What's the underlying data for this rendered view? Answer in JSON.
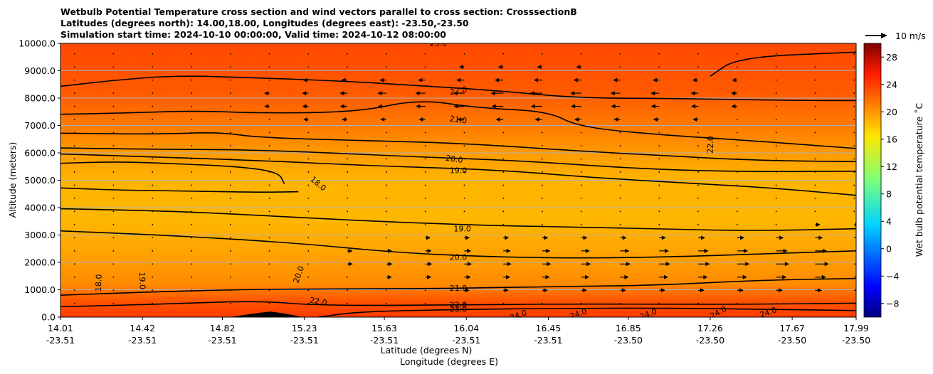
{
  "chart_data": {
    "type": "contour_cross_section",
    "title_lines": [
      "Wetbulb Potential Temperature cross section and wind vectors parallel to cross section: CrosssectionB",
      "Latitudes (degrees north): 14.00,18.00, Longitudes (degrees east): -23.50,-23.50",
      "Simulation start time: 2024-10-10 00:00:00, Valid time: 2024-10-12 08:00:00"
    ],
    "ylabel": "Altitude (meters)",
    "xlabel_line1": "Latitude (degrees N)",
    "xlabel_line2": "Longitude (degrees E)",
    "ylim": [
      0,
      10000
    ],
    "xlim": [
      14.01,
      17.99
    ],
    "y_ticks": [
      {
        "value": 0,
        "label": "0.0"
      },
      {
        "value": 1000,
        "label": "1000.0"
      },
      {
        "value": 2000,
        "label": "2000.0"
      },
      {
        "value": 3000,
        "label": "3000.0"
      },
      {
        "value": 4000,
        "label": "4000.0"
      },
      {
        "value": 5000,
        "label": "5000.0"
      },
      {
        "value": 6000,
        "label": "6000.0"
      },
      {
        "value": 7000,
        "label": "7000.0"
      },
      {
        "value": 8000,
        "label": "8000.0"
      },
      {
        "value": 9000,
        "label": "9000.0"
      },
      {
        "value": 10000,
        "label": "10000.0"
      }
    ],
    "x_ticks": [
      {
        "value": 14.01,
        "lat": "14.01",
        "lon": "-23.51"
      },
      {
        "value": 14.42,
        "lat": "14.42",
        "lon": "-23.51"
      },
      {
        "value": 14.82,
        "lat": "14.82",
        "lon": "-23.51"
      },
      {
        "value": 15.23,
        "lat": "15.23",
        "lon": "-23.51"
      },
      {
        "value": 15.63,
        "lat": "15.63",
        "lon": "-23.51"
      },
      {
        "value": 16.04,
        "lat": "16.04",
        "lon": "-23.51"
      },
      {
        "value": 16.45,
        "lat": "16.45",
        "lon": "-23.51"
      },
      {
        "value": 16.85,
        "lat": "16.85",
        "lon": "-23.50"
      },
      {
        "value": 17.26,
        "lat": "17.26",
        "lon": "-23.50"
      },
      {
        "value": 17.67,
        "lat": "17.67",
        "lon": "-23.50"
      },
      {
        "value": 17.99,
        "lat": "17.99",
        "lon": "-23.50"
      }
    ],
    "grid": "horizontal",
    "colorbar": {
      "label": "Wet bulb potential temperature ˚C",
      "range": [
        -10,
        30
      ],
      "ticks": [
        -8,
        -4,
        0,
        4,
        8,
        12,
        16,
        20,
        24,
        28
      ],
      "tick_labels": [
        "−8",
        "−4",
        "0",
        "4",
        "8",
        "12",
        "16",
        "20",
        "24",
        "28"
      ],
      "colormap": "jet"
    },
    "wind_key_label": "10 m/s",
    "contours": [
      {
        "level": 18,
        "label": "18.0",
        "points": [
          [
            14.01,
            4720
          ],
          [
            14.3,
            4640
          ],
          [
            14.7,
            4600
          ],
          [
            15.0,
            4560
          ],
          [
            15.2,
            4580
          ]
        ]
      },
      {
        "level": 18,
        "label": "18.0",
        "points": [
          [
            14.01,
            5620
          ],
          [
            14.3,
            5680
          ],
          [
            14.6,
            5600
          ],
          [
            14.9,
            5500
          ],
          [
            15.1,
            5300
          ],
          [
            15.13,
            4870
          ]
        ]
      },
      {
        "level": 19,
        "label": "19.0",
        "points": [
          [
            14.01,
            3960
          ],
          [
            14.6,
            3870
          ],
          [
            15.2,
            3640
          ],
          [
            15.7,
            3460
          ],
          [
            16.2,
            3340
          ],
          [
            16.6,
            3290
          ],
          [
            17.0,
            3220
          ],
          [
            17.5,
            3150
          ],
          [
            17.99,
            3230
          ]
        ]
      },
      {
        "level": 19,
        "label": "19.0",
        "points": [
          [
            14.01,
            5960
          ],
          [
            14.5,
            5850
          ],
          [
            15.0,
            5720
          ],
          [
            15.6,
            5520
          ],
          [
            16.2,
            5380
          ],
          [
            16.7,
            5080
          ],
          [
            17.2,
            4880
          ],
          [
            17.6,
            4700
          ],
          [
            17.99,
            4450
          ]
        ]
      },
      {
        "level": 20,
        "label": "20.0",
        "points": [
          [
            14.01,
            3150
          ],
          [
            14.6,
            2970
          ],
          [
            15.2,
            2700
          ],
          [
            15.7,
            2350
          ],
          [
            16.2,
            2190
          ],
          [
            16.7,
            2150
          ],
          [
            17.2,
            2230
          ],
          [
            17.6,
            2330
          ],
          [
            17.99,
            2420
          ]
        ]
      },
      {
        "level": 20,
        "label": "20.0",
        "points": [
          [
            14.01,
            6180
          ],
          [
            14.5,
            6130
          ],
          [
            14.9,
            6120
          ],
          [
            15.3,
            6020
          ],
          [
            15.8,
            5850
          ],
          [
            16.3,
            5720
          ],
          [
            16.9,
            5420
          ],
          [
            17.4,
            5310
          ],
          [
            17.99,
            5330
          ]
        ]
      },
      {
        "level": 21,
        "label": "21.0",
        "points": [
          [
            14.01,
            800
          ],
          [
            14.5,
            930
          ],
          [
            15.0,
            1020
          ],
          [
            15.5,
            1030
          ],
          [
            16.0,
            1050
          ],
          [
            16.5,
            1120
          ],
          [
            17.0,
            1160
          ],
          [
            17.5,
            1350
          ],
          [
            17.99,
            1410
          ]
        ]
      },
      {
        "level": 21,
        "label": "21.0",
        "points": [
          [
            14.01,
            6720
          ],
          [
            14.5,
            6680
          ],
          [
            14.8,
            6760
          ],
          [
            15.0,
            6560
          ],
          [
            15.5,
            6450
          ],
          [
            16.0,
            6360
          ],
          [
            16.6,
            6070
          ],
          [
            17.1,
            5870
          ],
          [
            17.5,
            5720
          ],
          [
            17.99,
            5680
          ]
        ]
      },
      {
        "level": 21,
        "label": "21.0",
        "points": [
          [
            14.01,
            7410
          ],
          [
            14.3,
            7450
          ],
          [
            14.7,
            7540
          ],
          [
            15.0,
            7450
          ],
          [
            15.5,
            7490
          ],
          [
            15.8,
            7960
          ],
          [
            16.1,
            7640
          ],
          [
            16.45,
            7520
          ],
          [
            16.6,
            6950
          ],
          [
            17.0,
            6660
          ],
          [
            17.4,
            6480
          ],
          [
            17.99,
            6160
          ]
        ]
      },
      {
        "level": 22,
        "label": "22.0",
        "points": [
          [
            14.01,
            380
          ],
          [
            14.5,
            470
          ],
          [
            15.0,
            600
          ],
          [
            15.3,
            420
          ],
          [
            16.0,
            440
          ],
          [
            16.5,
            480
          ],
          [
            17.0,
            470
          ],
          [
            17.5,
            470
          ],
          [
            17.99,
            510
          ]
        ]
      },
      {
        "level": 22,
        "label": "22.0",
        "points": [
          [
            14.01,
            8430
          ],
          [
            14.3,
            8670
          ],
          [
            14.6,
            8830
          ],
          [
            15.0,
            8740
          ],
          [
            15.4,
            8630
          ],
          [
            15.8,
            8460
          ],
          [
            16.2,
            8270
          ],
          [
            16.6,
            8000
          ],
          [
            17.1,
            7990
          ],
          [
            17.6,
            7920
          ],
          [
            17.99,
            7910
          ]
        ]
      },
      {
        "level": 23,
        "label": "23.0",
        "points": [
          [
            15.3,
            0
          ],
          [
            15.5,
            200
          ],
          [
            16.0,
            280
          ],
          [
            16.5,
            320
          ],
          [
            17.0,
            330
          ],
          [
            17.5,
            290
          ],
          [
            17.99,
            240
          ]
        ]
      },
      {
        "level": 23,
        "label": "23.0",
        "points": [
          [
            17.26,
            8800
          ],
          [
            17.4,
            9500
          ],
          [
            17.99,
            9680
          ]
        ]
      }
    ],
    "contour_labels": [
      {
        "text": "18.0",
        "x": 15.3,
        "y": 4880,
        "rot": 40
      },
      {
        "text": "19.0",
        "x": 16.0,
        "y": 5370,
        "rot": 0
      },
      {
        "text": "19.0",
        "x": 16.02,
        "y": 3240,
        "rot": 0
      },
      {
        "text": "20.0",
        "x": 15.98,
        "y": 5780,
        "rot": 8
      },
      {
        "text": "20.0",
        "x": 16.0,
        "y": 2190,
        "rot": 0
      },
      {
        "text": "20.0",
        "x": 15.2,
        "y": 1560,
        "rot": -70
      },
      {
        "text": "21.0",
        "x": 16.0,
        "y": 7220,
        "rot": 8
      },
      {
        "text": "21.0",
        "x": 16.0,
        "y": 1060,
        "rot": 0
      },
      {
        "text": "22.0",
        "x": 16.0,
        "y": 8280,
        "rot": -10
      },
      {
        "text": "22.0",
        "x": 17.26,
        "y": 6300,
        "rot": -88
      },
      {
        "text": "22.0",
        "x": 15.3,
        "y": 580,
        "rot": 10
      },
      {
        "text": "22.0",
        "x": 16.0,
        "y": 460,
        "rot": 0
      },
      {
        "text": "23.0",
        "x": 16.0,
        "y": 300,
        "rot": 0
      },
      {
        "text": "23.0",
        "x": 15.9,
        "y": 10000,
        "rot": 0
      },
      {
        "text": "18.0",
        "x": 14.2,
        "y": 1250,
        "rot": -88
      },
      {
        "text": "19.0",
        "x": 14.42,
        "y": 1330,
        "rot": 88
      },
      {
        "text": "24.0",
        "x": 16.3,
        "y": 80,
        "rot": -20
      },
      {
        "text": "24.0",
        "x": 16.6,
        "y": 130,
        "rot": -20
      },
      {
        "text": "24.0",
        "x": 16.95,
        "y": 120,
        "rot": -20
      },
      {
        "text": "24.0",
        "x": 17.3,
        "y": 180,
        "rot": -30
      },
      {
        "text": "24.0",
        "x": 17.55,
        "y": 180,
        "rot": -20
      }
    ],
    "terrain_peak": {
      "lat": 15.06,
      "height_m": 200
    },
    "wind_vectors_note": "horizontal wind arrows parallel to section: strong eastward (right) near 1500-3000 m at 16.5-17.99; westward (left) near 7500-9500 m at 15.4-17.3"
  }
}
